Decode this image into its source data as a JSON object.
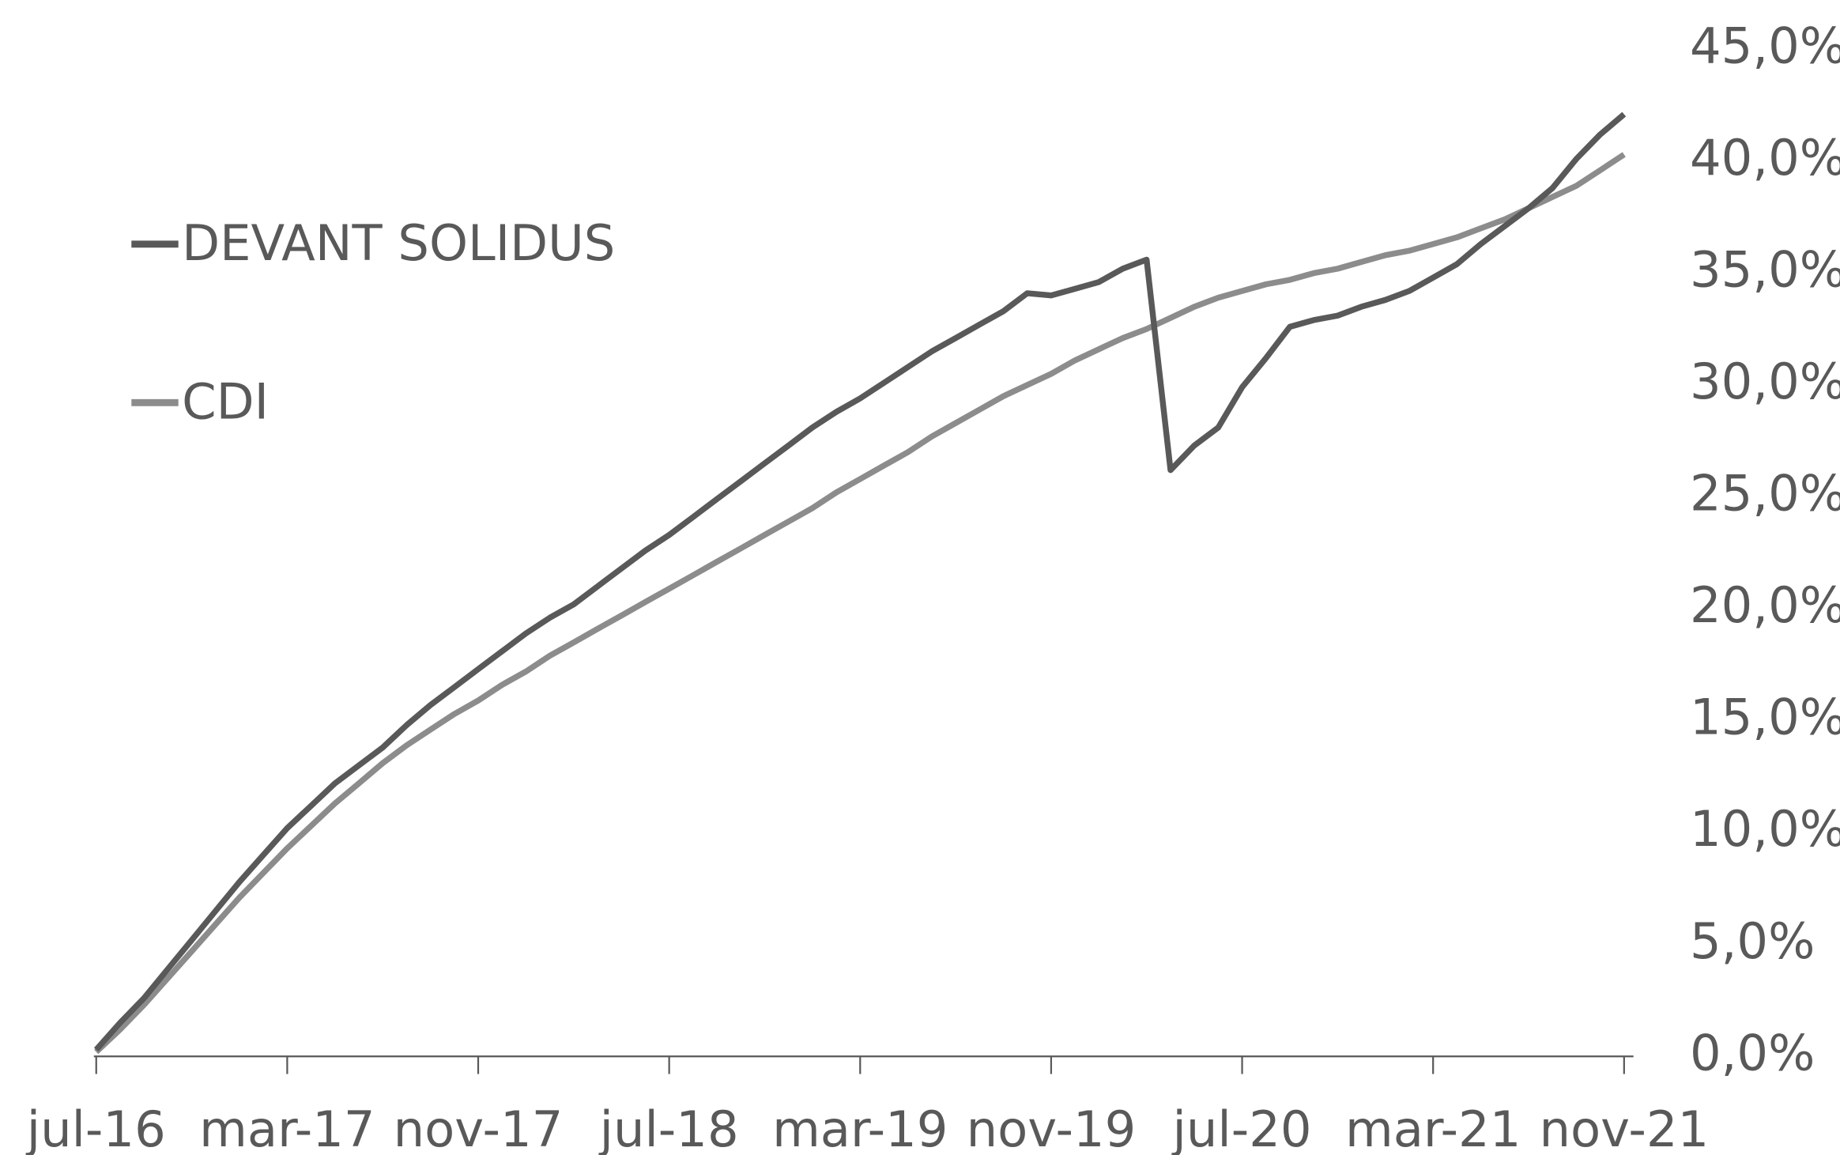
{
  "chart_data": {
    "type": "line",
    "categories": [
      "jul-16",
      null,
      null,
      null,
      null,
      null,
      null,
      null,
      "mar-17",
      null,
      null,
      null,
      null,
      null,
      null,
      null,
      "nov-17",
      null,
      null,
      null,
      null,
      null,
      null,
      null,
      "jul-18",
      null,
      null,
      null,
      null,
      null,
      null,
      null,
      "mar-19",
      null,
      null,
      null,
      null,
      null,
      null,
      null,
      "nov-19",
      null,
      null,
      null,
      null,
      null,
      null,
      null,
      "jul-20",
      null,
      null,
      null,
      null,
      null,
      null,
      null,
      "mar-21",
      null,
      null,
      null,
      null,
      null,
      null,
      null,
      "nov-21"
    ],
    "series": [
      {
        "name": "DEVANT SOLIDUS",
        "color": "#595959",
        "values": [
          0.3,
          1.5,
          2.6,
          3.9,
          5.2,
          6.5,
          7.8,
          9.0,
          10.2,
          11.2,
          12.2,
          13.0,
          13.8,
          14.8,
          15.7,
          16.5,
          17.3,
          18.1,
          18.9,
          19.6,
          20.2,
          21.0,
          21.8,
          22.6,
          23.3,
          24.1,
          24.9,
          25.7,
          26.5,
          27.3,
          28.1,
          28.8,
          29.4,
          30.1,
          30.8,
          31.5,
          32.1,
          32.7,
          33.3,
          34.1,
          34.0,
          34.3,
          34.6,
          35.2,
          35.6,
          26.2,
          27.3,
          28.1,
          29.9,
          31.2,
          32.6,
          32.9,
          33.1,
          33.5,
          33.8,
          34.2,
          34.8,
          35.4,
          36.3,
          37.1,
          37.9,
          38.8,
          40.1,
          41.2,
          42.1
        ]
      },
      {
        "name": "CDI",
        "color": "#8c8c8c",
        "values": [
          0.2,
          1.2,
          2.3,
          3.5,
          4.7,
          5.9,
          7.1,
          8.2,
          9.3,
          10.3,
          11.3,
          12.2,
          13.1,
          13.9,
          14.6,
          15.3,
          15.9,
          16.6,
          17.2,
          17.9,
          18.5,
          19.1,
          19.7,
          20.3,
          20.9,
          21.5,
          22.1,
          22.7,
          23.3,
          23.9,
          24.5,
          25.2,
          25.8,
          26.4,
          27.0,
          27.7,
          28.3,
          28.9,
          29.5,
          30.0,
          30.5,
          31.1,
          31.6,
          32.1,
          32.5,
          33.0,
          33.5,
          33.9,
          34.2,
          34.5,
          34.7,
          35.0,
          35.2,
          35.5,
          35.8,
          36.0,
          36.3,
          36.6,
          37.0,
          37.4,
          37.9,
          38.4,
          38.9,
          39.6,
          40.3
        ]
      }
    ],
    "ylim": [
      0,
      45
    ],
    "yticks": [
      {
        "value": 0,
        "label": "0,0%"
      },
      {
        "value": 5,
        "label": "5,0%"
      },
      {
        "value": 10,
        "label": "10,0%"
      },
      {
        "value": 15,
        "label": "15,0%"
      },
      {
        "value": 20,
        "label": "20,0%"
      },
      {
        "value": 25,
        "label": "25,0%"
      },
      {
        "value": 30,
        "label": "30,0%"
      },
      {
        "value": 35,
        "label": "35,0%"
      },
      {
        "value": 40,
        "label": "40,0%"
      },
      {
        "value": 45,
        "label": "45,0%"
      }
    ],
    "y_axis_side": "right",
    "legend": "upper left",
    "grid": false
  }
}
